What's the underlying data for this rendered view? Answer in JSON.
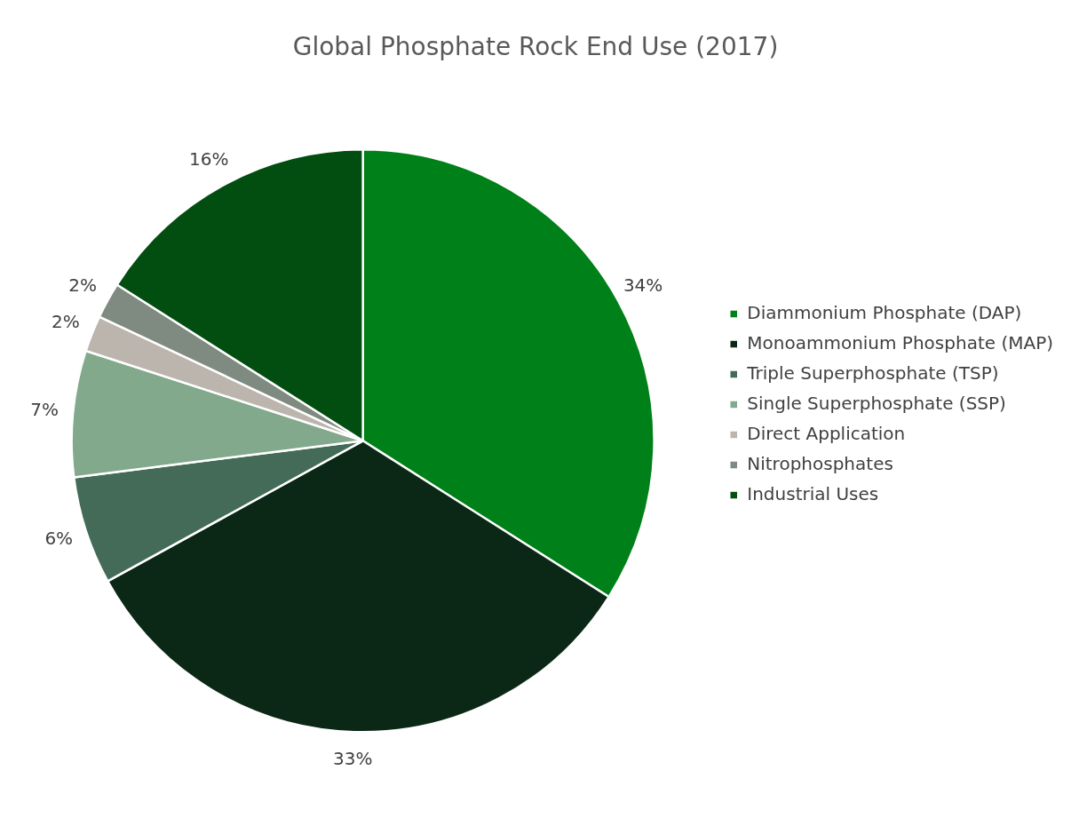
{
  "chart_data": {
    "type": "pie",
    "title": "Global Phosphate Rock End Use (2017)",
    "categories": [
      "Diammonium Phosphate (DAP)",
      "Monoammonium Phosphate (MAP)",
      "Triple Superphosphate (TSP)",
      "Single Superphosphate (SSP)",
      "Direct Application",
      "Nitrophosphates",
      "Industrial Uses"
    ],
    "values": [
      34,
      33,
      6,
      7,
      2,
      2,
      16
    ],
    "value_labels": [
      "34%",
      "33%",
      "6%",
      "7%",
      "2%",
      "2%",
      "16%"
    ],
    "colors": [
      "#008018",
      "#0b2816",
      "#436b58",
      "#82a98c",
      "#bcb5ae",
      "#7f8a80",
      "#024d10"
    ],
    "legend": "right"
  }
}
